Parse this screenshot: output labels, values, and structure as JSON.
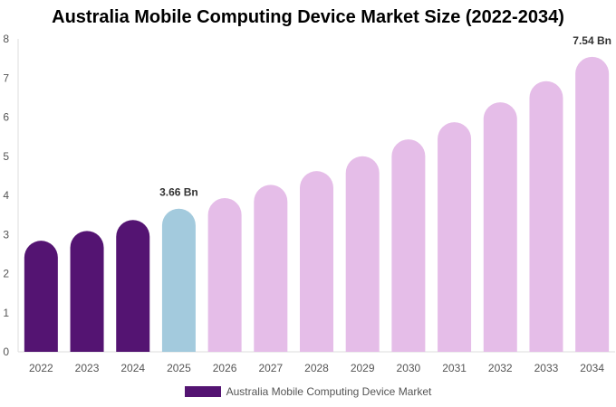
{
  "chart_data": {
    "type": "bar",
    "title": "Australia Mobile Computing Device Market Size (2022-2034)",
    "categories": [
      "2022",
      "2023",
      "2024",
      "2025",
      "2026",
      "2027",
      "2028",
      "2029",
      "2030",
      "2031",
      "2032",
      "2033",
      "2034"
    ],
    "series": [
      {
        "name": "Australia Mobile Computing Device Market",
        "values": [
          2.84,
          3.09,
          3.37,
          3.66,
          3.93,
          4.27,
          4.62,
          5.0,
          5.43,
          5.87,
          6.38,
          6.92,
          7.54
        ]
      }
    ],
    "ylim": [
      0,
      8
    ],
    "yticks": [
      "0",
      "1",
      "2",
      "3",
      "4",
      "5",
      "6",
      "7",
      "8"
    ],
    "data_labels": [
      {
        "index": 3,
        "text": "3.66 Bn"
      },
      {
        "index": 12,
        "text": "7.54 Bn"
      }
    ],
    "bar_colors": {
      "historical": "#541472",
      "current": "#a3cadd",
      "forecast": "#e5bde8"
    },
    "historical_count": 3,
    "current_index": 3,
    "legend_position": "bottom",
    "legend_color": "#541472",
    "grid": false
  }
}
